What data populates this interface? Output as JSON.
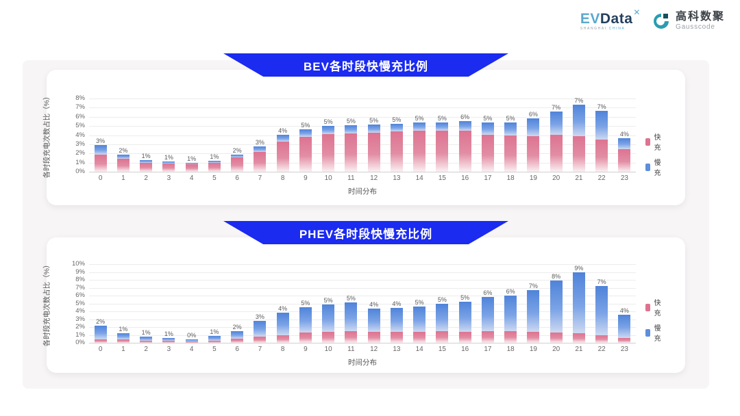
{
  "header": {
    "evdata_logo": {
      "ev": "EV",
      "data": "Data",
      "x_mark": "✕",
      "sub_left": "SHANGHAI",
      "sub_right": "CHINA"
    },
    "gausscode_logo": {
      "cn": "高科数聚",
      "en": "Gausscode"
    }
  },
  "colors": {
    "banner_blue": "#1b2bf0",
    "fast_pink": "#dd7390",
    "slow_blue": "#5e8edc"
  },
  "chart_data": [
    {
      "type": "bar",
      "stacked": true,
      "title": "BEV各时段快慢充比例",
      "xlabel": "时间分布",
      "ylabel": "各时段充电次数占比（%）",
      "ylim": [
        0,
        8
      ],
      "grid": true,
      "legend_position": "right",
      "categories": [
        "0",
        "1",
        "2",
        "3",
        "4",
        "5",
        "6",
        "7",
        "8",
        "9",
        "10",
        "11",
        "12",
        "13",
        "14",
        "15",
        "16",
        "17",
        "18",
        "19",
        "20",
        "21",
        "22",
        "23"
      ],
      "series": [
        {
          "name": "快充",
          "color": "#dd7390",
          "gradient": [
            "#dd7390",
            "#e28da4",
            "#fbf0f3"
          ],
          "values": [
            1.9,
            1.4,
            1.0,
            0.9,
            0.85,
            1.0,
            1.55,
            2.2,
            3.3,
            3.8,
            4.1,
            4.2,
            4.3,
            4.4,
            4.5,
            4.5,
            4.45,
            4.05,
            3.95,
            3.9,
            4.05,
            3.9,
            3.5,
            2.5
          ]
        },
        {
          "name": "慢充",
          "color": "#5e8edc",
          "gradient": [
            "#4f83d9",
            "#7ba3e6",
            "#cdd9f1"
          ],
          "values": [
            1.0,
            0.45,
            0.3,
            0.2,
            0.1,
            0.2,
            0.35,
            0.55,
            0.75,
            0.85,
            0.9,
            0.9,
            0.85,
            0.8,
            0.85,
            0.9,
            1.1,
            1.35,
            1.4,
            1.95,
            2.55,
            3.4,
            3.15,
            1.2
          ]
        }
      ],
      "total_labels": [
        "3%",
        "2%",
        "1%",
        "1%",
        "1%",
        "1%",
        "2%",
        "3%",
        "4%",
        "5%",
        "5%",
        "5%",
        "5%",
        "5%",
        "5%",
        "5%",
        "6%",
        "5%",
        "5%",
        "6%",
        "7%",
        "7%",
        "7%",
        "4%"
      ]
    },
    {
      "type": "bar",
      "stacked": true,
      "title": "PHEV各时段快慢充比例",
      "xlabel": "时间分布",
      "ylabel": "各时段充电次数占比（%）",
      "ylim": [
        0,
        10
      ],
      "grid": true,
      "legend_position": "right",
      "categories": [
        "0",
        "1",
        "2",
        "3",
        "4",
        "5",
        "6",
        "7",
        "8",
        "9",
        "10",
        "11",
        "12",
        "13",
        "14",
        "15",
        "16",
        "17",
        "18",
        "19",
        "20",
        "21",
        "22",
        "23"
      ],
      "series": [
        {
          "name": "快充",
          "color": "#dd7390",
          "gradient": [
            "#dd7390",
            "#e28da4",
            "#fbf0f3"
          ],
          "values": [
            0.45,
            0.4,
            0.3,
            0.25,
            0.2,
            0.3,
            0.55,
            0.75,
            0.95,
            1.3,
            1.35,
            1.45,
            1.35,
            1.35,
            1.35,
            1.5,
            1.4,
            1.5,
            1.5,
            1.4,
            1.3,
            1.2,
            1.0,
            0.6
          ]
        },
        {
          "name": "慢充",
          "color": "#5e8edc",
          "gradient": [
            "#4f83d9",
            "#7ba3e6",
            "#cdd9f1"
          ],
          "values": [
            1.75,
            0.8,
            0.5,
            0.35,
            0.25,
            0.55,
            0.95,
            2.0,
            2.9,
            3.2,
            3.55,
            3.65,
            3.0,
            3.1,
            3.3,
            3.5,
            3.8,
            4.3,
            4.5,
            5.3,
            6.6,
            7.8,
            6.2,
            3.0
          ]
        }
      ],
      "total_labels": [
        "2%",
        "1%",
        "1%",
        "1%",
        "0%",
        "1%",
        "2%",
        "3%",
        "4%",
        "5%",
        "5%",
        "5%",
        "4%",
        "4%",
        "5%",
        "5%",
        "5%",
        "6%",
        "6%",
        "7%",
        "8%",
        "9%",
        "7%",
        "4%"
      ]
    }
  ]
}
